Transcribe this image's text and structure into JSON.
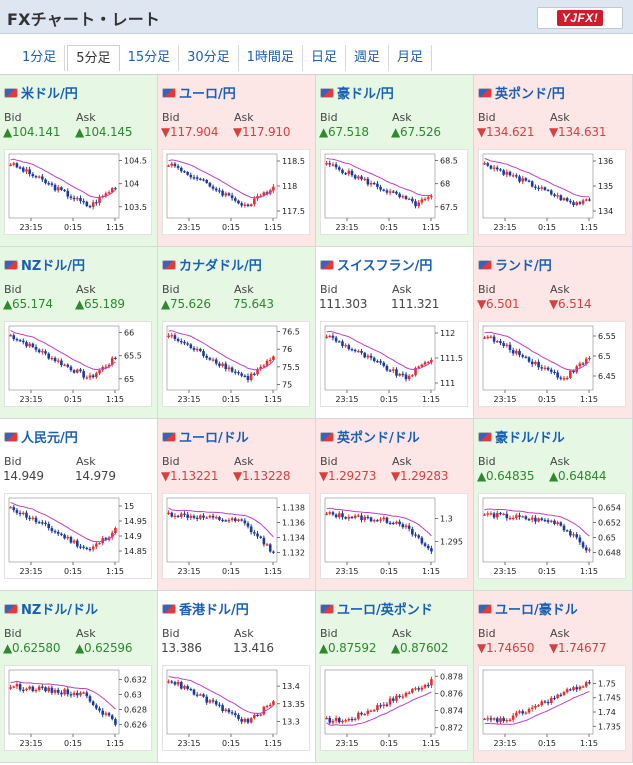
{
  "header": {
    "title": "FXチャート・レート",
    "logo_text": "YJFX!"
  },
  "tabs": [
    {
      "label": "1分足",
      "active": false
    },
    {
      "label": "5分足",
      "active": true
    },
    {
      "label": "15分足",
      "active": false
    },
    {
      "label": "30分足",
      "active": false
    },
    {
      "label": "1時間足",
      "active": false
    },
    {
      "label": "日足",
      "active": false
    },
    {
      "label": "週足",
      "active": false
    },
    {
      "label": "月足",
      "active": false
    }
  ],
  "labels": {
    "bid": "Bid",
    "ask": "Ask"
  },
  "time_ticks": [
    "23:15",
    "0:15",
    "1:15"
  ],
  "colors": {
    "up_bg": "#e6f7e4",
    "down_bg": "#fde6e6",
    "flat_bg": "#ffffff",
    "up_text": "#2c8a2c",
    "down_text": "#d84040",
    "candle_up": "#e03030",
    "candle_down": "#1f3a9e",
    "ma_line": "#c040c0"
  },
  "pairs": [
    {
      "name": "米ドル/円",
      "trend": "up",
      "bid": "▲104.141",
      "ask": "▲104.145",
      "y_ticks": [
        "104.5",
        "104",
        "103.5"
      ],
      "ylim": [
        103.3,
        104.6
      ],
      "shape": "dip_recover"
    },
    {
      "name": "ユーロ/円",
      "trend": "down",
      "bid": "▼117.904",
      "ask": "▼117.910",
      "y_ticks": [
        "118.5",
        "118",
        "117.5"
      ],
      "ylim": [
        117.4,
        118.6
      ],
      "shape": "dip_recover"
    },
    {
      "name": "豪ドル/円",
      "trend": "up",
      "bid": "▲67.518",
      "ask": "▲67.526",
      "y_ticks": [
        "68.5",
        "68",
        "67.5"
      ],
      "ylim": [
        67.3,
        68.6
      ],
      "shape": "decline"
    },
    {
      "name": "英ポンド/円",
      "trend": "down",
      "bid": "▼134.621",
      "ask": "▼134.631",
      "y_ticks": [
        "136",
        "135",
        "134"
      ],
      "ylim": [
        133.8,
        136.2
      ],
      "shape": "decline"
    },
    {
      "name": "NZドル/円",
      "trend": "up",
      "bid": "▲65.174",
      "ask": "▲65.189",
      "y_ticks": [
        "66",
        "65.5",
        "65"
      ],
      "ylim": [
        64.8,
        66.1
      ],
      "shape": "dip_recover"
    },
    {
      "name": "カナダドル/円",
      "trend": "up",
      "bid": "▲75.626",
      "ask": "75.643",
      "y_ticks": [
        "76.5",
        "76",
        "75.5",
        "75"
      ],
      "ylim": [
        74.9,
        76.6
      ],
      "shape": "dip_recover"
    },
    {
      "name": "スイスフラン/円",
      "trend": "flat",
      "bid": "111.303",
      "ask": "111.321",
      "y_ticks": [
        "112",
        "111.5",
        "111"
      ],
      "ylim": [
        110.9,
        112.1
      ],
      "shape": "dip_recover"
    },
    {
      "name": "ランド/円",
      "trend": "down",
      "bid": "▼6.501",
      "ask": "▼6.514",
      "y_ticks": [
        "6.55",
        "6.5",
        "6.45"
      ],
      "ylim": [
        6.42,
        6.57
      ],
      "shape": "dip_recover"
    },
    {
      "name": "人民元/円",
      "trend": "flat",
      "bid": "14.949",
      "ask": "14.979",
      "y_ticks": [
        "15",
        "14.95",
        "14.9",
        "14.85"
      ],
      "ylim": [
        14.82,
        15.02
      ],
      "shape": "dip_recover"
    },
    {
      "name": "ユーロ/ドル",
      "trend": "down",
      "bid": "▼1.13221",
      "ask": "▼1.13228",
      "y_ticks": [
        "1.138",
        "1.136",
        "1.134",
        "1.132"
      ],
      "ylim": [
        1.131,
        1.139
      ],
      "shape": "late_drop"
    },
    {
      "name": "英ポンド/ドル",
      "trend": "down",
      "bid": "▼1.29273",
      "ask": "▼1.29283",
      "y_ticks": [
        "1.3",
        "1.295"
      ],
      "ylim": [
        1.291,
        1.304
      ],
      "shape": "late_drop"
    },
    {
      "name": "豪ドル/ドル",
      "trend": "up",
      "bid": "▲0.64835",
      "ask": "▲0.64844",
      "y_ticks": [
        "0.654",
        "0.652",
        "0.65",
        "0.648"
      ],
      "ylim": [
        0.647,
        0.655
      ],
      "shape": "late_drop"
    },
    {
      "name": "NZドル/ドル",
      "trend": "up",
      "bid": "▲0.62580",
      "ask": "▲0.62596",
      "y_ticks": [
        "0.632",
        "0.63",
        "0.628",
        "0.626"
      ],
      "ylim": [
        0.625,
        0.633
      ],
      "shape": "late_drop"
    },
    {
      "name": "香港ドル/円",
      "trend": "flat",
      "bid": "13.386",
      "ask": "13.416",
      "y_ticks": [
        "13.4",
        "13.35",
        "13.3"
      ],
      "ylim": [
        13.27,
        13.44
      ],
      "shape": "dip_recover"
    },
    {
      "name": "ユーロ/英ポンド",
      "trend": "up",
      "bid": "▲0.87592",
      "ask": "▲0.87602",
      "y_ticks": [
        "0.878",
        "0.876",
        "0.874",
        "0.872"
      ],
      "ylim": [
        0.8715,
        0.8785
      ],
      "shape": "rise"
    },
    {
      "name": "ユーロ/豪ドル",
      "trend": "down",
      "bid": "▼1.74650",
      "ask": "▼1.74677",
      "y_ticks": [
        "1.75",
        "1.745",
        "1.74",
        "1.735"
      ],
      "ylim": [
        1.733,
        1.754
      ],
      "shape": "rise"
    }
  ]
}
